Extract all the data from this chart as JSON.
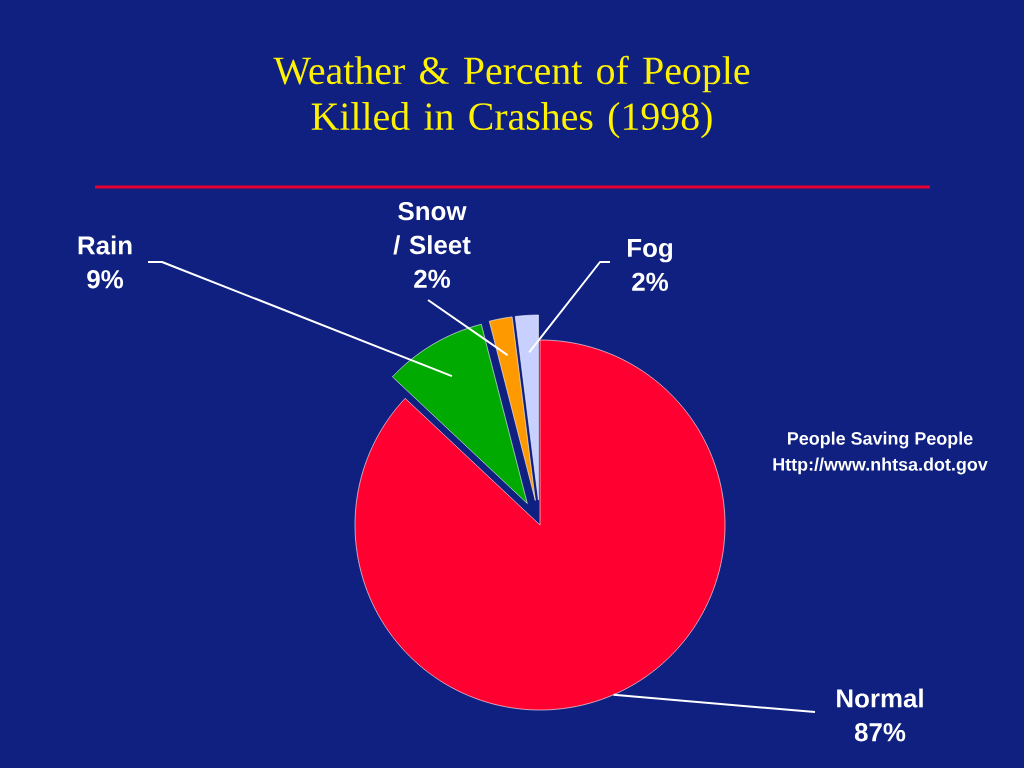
{
  "chart_data": {
    "type": "pie",
    "title": "Weather & Percent of People Killed in Crashes (1998)",
    "categories": [
      "Normal",
      "Rain",
      "Snow / Sleet",
      "Fog"
    ],
    "values": [
      87,
      9,
      2,
      2
    ],
    "colors": [
      "#ff0030",
      "#00aa00",
      "#ff9900",
      "#c8d0ff"
    ],
    "value_labels": [
      "87%",
      "9%",
      "2%",
      "2%"
    ],
    "annotations": [
      "People Saving People",
      "Http://www.nhtsa.dot.gov"
    ]
  }
}
